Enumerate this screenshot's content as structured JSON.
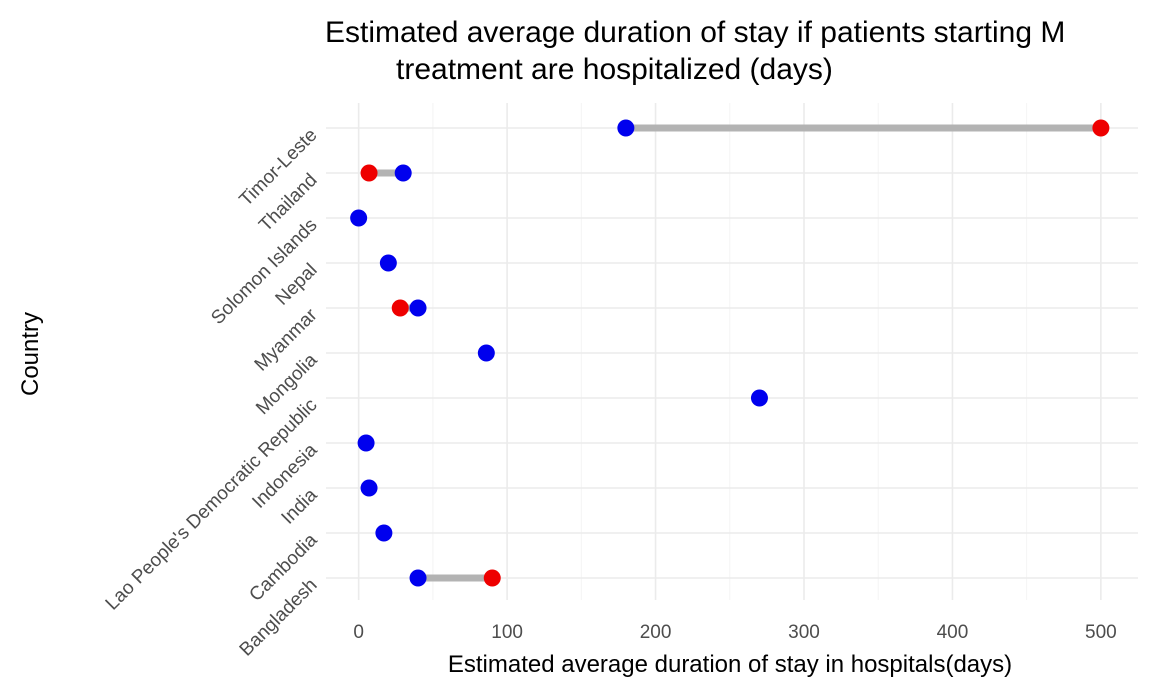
{
  "chart_data": {
    "type": "dumbbell",
    "title_lines": [
      "Estimated average duration of stay if patients starting M",
      "treatment are hospitalized (days)"
    ],
    "xlabel": "Estimated average duration of stay in hospitals(days)",
    "ylabel": "Country",
    "xlim": [
      -22,
      525
    ],
    "x_ticks": [
      0,
      100,
      200,
      300,
      400,
      500
    ],
    "x_tick_labels": [
      "0",
      "100",
      "200",
      "300",
      "400",
      "500"
    ],
    "grid": true,
    "legend": "none",
    "colors": {
      "blue_point": "#0000ee",
      "red_point": "#ee0000",
      "segment": "#b3b3b3"
    },
    "categories": [
      "Bangladesh",
      "Cambodia",
      "India",
      "Indonesia",
      "Lao People's Democratic Republic",
      "Mongolia",
      "Myanmar",
      "Nepal",
      "Solomon Islands",
      "Thailand",
      "Timor-Leste"
    ],
    "rows": [
      {
        "blue": 40,
        "red": 90
      },
      {
        "blue": 17,
        "red": null
      },
      {
        "blue": 7,
        "red": null
      },
      {
        "blue": 5,
        "red": null
      },
      {
        "blue": 270,
        "red": null
      },
      {
        "blue": 86,
        "red": null
      },
      {
        "blue": 40,
        "red": 28
      },
      {
        "blue": 20,
        "red": null
      },
      {
        "blue": 0,
        "red": null
      },
      {
        "blue": 30,
        "red": 7
      },
      {
        "blue": 180,
        "red": 500
      }
    ]
  }
}
